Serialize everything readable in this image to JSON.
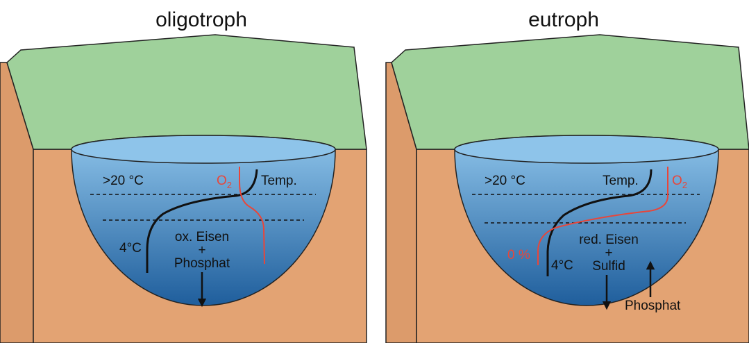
{
  "colors": {
    "grass": "#9fd19b",
    "soil": "#e3a373",
    "soil_side": "#dc9b6b",
    "water_top": "#8ec4ea",
    "water_bottom": "#1f5e9c",
    "oxygen_curve": "#e8463a",
    "temperature_curve": "#111111",
    "outline": "#222222"
  },
  "panels": [
    {
      "title": "oligotroph",
      "labels": {
        "epilimnion_temp": ">20 °C",
        "oxygen": "O",
        "oxygen_sub": "2",
        "temperature": "Temp.",
        "hypolimnion_temp": "4°C",
        "sediment_line1": "ox. Eisen",
        "sediment_plus": "+",
        "sediment_line2": "Phosphat"
      },
      "arrows": [
        "down"
      ]
    },
    {
      "title": "eutroph",
      "labels": {
        "epilimnion_temp": ">20 °C",
        "temperature": "Temp.",
        "oxygen": "O",
        "oxygen_sub": "2",
        "oxygen_zero": "0 %",
        "hypolimnion_temp": "4°C",
        "sediment_line1": "red. Eisen",
        "sediment_plus": "+",
        "sediment_line2": "Sulfid",
        "release": "Phosphat"
      },
      "arrows": [
        "down",
        "up"
      ]
    }
  ]
}
